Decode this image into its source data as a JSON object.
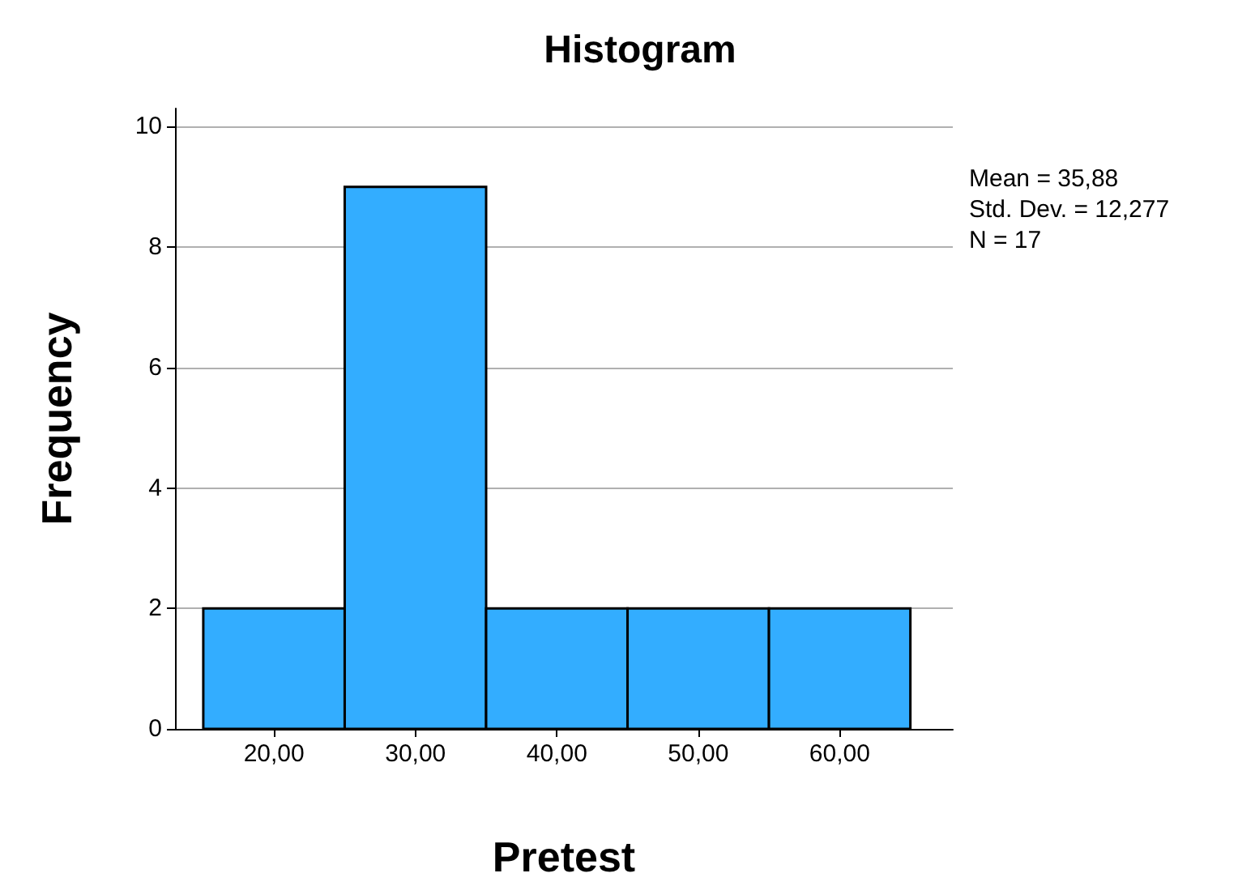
{
  "chart_data": {
    "type": "histogram",
    "title": "Histogram",
    "xlabel": "Pretest",
    "ylabel": "Frequency",
    "bins": [
      15,
      25,
      35,
      45,
      55,
      65
    ],
    "values": [
      2,
      9,
      2,
      2,
      2
    ],
    "color": "#33adff",
    "xlim": [
      13,
      68
    ],
    "xticks": [
      {
        "value": 20,
        "label": "20,00"
      },
      {
        "value": 30,
        "label": "30,00"
      },
      {
        "value": 40,
        "label": "40,00"
      },
      {
        "value": 50,
        "label": "50,00"
      },
      {
        "value": 60,
        "label": "60,00"
      }
    ],
    "ylim": [
      0,
      10.3
    ],
    "yticks": [
      0,
      2,
      4,
      6,
      8,
      10
    ],
    "grid": "y",
    "annotations": [
      "Mean = 35,88",
      "Std. Dev. = 12,277",
      "N = 17"
    ]
  }
}
